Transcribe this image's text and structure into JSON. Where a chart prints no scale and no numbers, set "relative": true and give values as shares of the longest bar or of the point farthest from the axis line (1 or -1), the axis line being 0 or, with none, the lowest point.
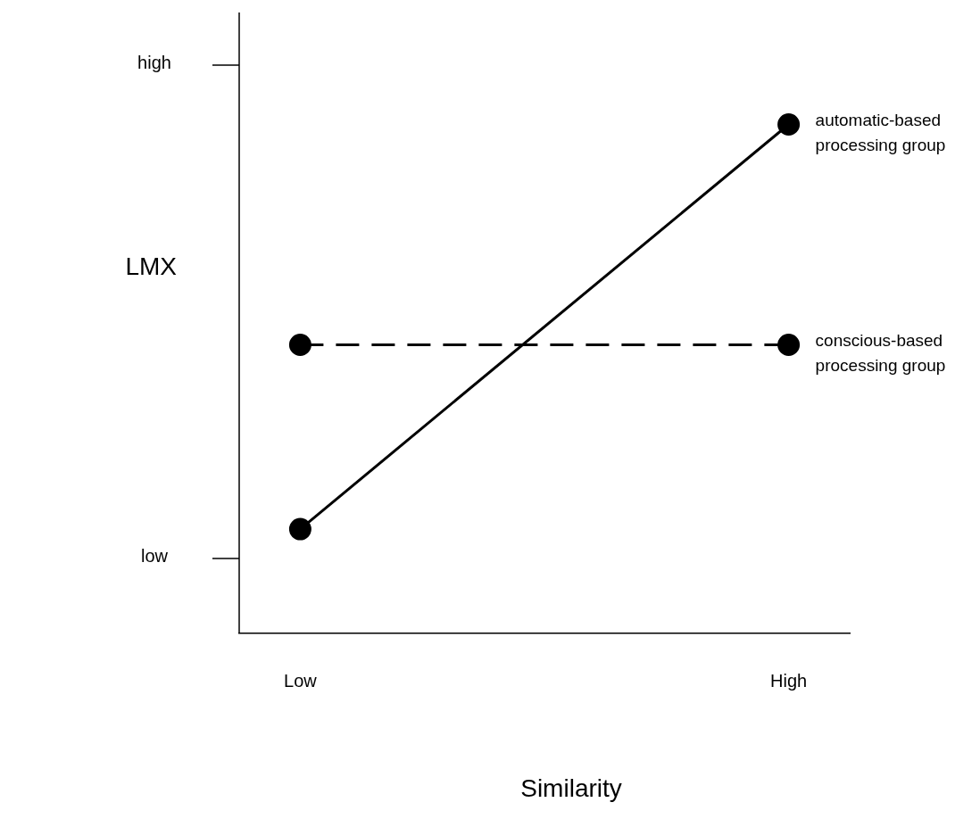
{
  "chart_data": {
    "type": "line",
    "relative": true,
    "xlabel": "Similarity",
    "ylabel": "LMX",
    "categories": [
      "Low",
      null,
      null,
      null,
      "High"
    ],
    "marker": "circle",
    "grid": false,
    "legend": false,
    "annotations": [
      "high",
      "low"
    ],
    "series": [
      {
        "name": "automatic-based processing group",
        "color": "#000000",
        "line_style": "solid",
        "values": [
          0.205,
          null,
          null,
          null,
          1
        ]
      },
      {
        "name": "conscious-based processing group",
        "color": "#000000",
        "line_style": "dashed",
        "values": [
          0.567,
          null,
          null,
          null,
          0.567
        ]
      }
    ]
  }
}
